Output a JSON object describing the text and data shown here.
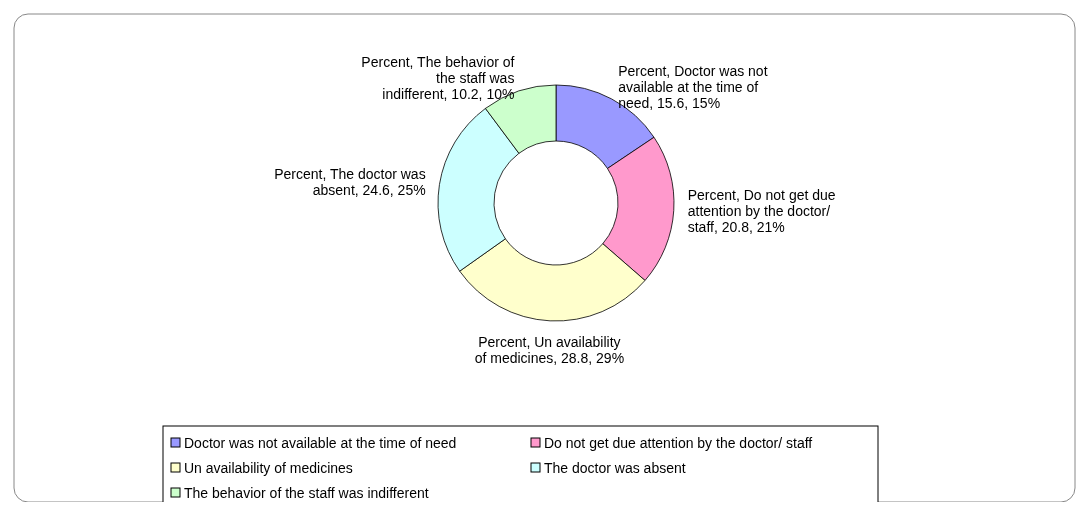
{
  "chart_data": {
    "type": "donut",
    "categories": [
      "Doctor was not available at the time of need",
      "Do not get due attention by the doctor/ staff",
      "Un availability of medicines",
      "The doctor was absent",
      "The behavior of the staff  was indifferent"
    ],
    "values": [
      15.6,
      20.8,
      28.8,
      24.6,
      10.2
    ],
    "colors": [
      "#9999ff",
      "#ff99cc",
      "#ffffcc",
      "#ccffff",
      "#ccffcc"
    ],
    "value_labels": [
      "Percent, Doctor was not available at the time of need, 15.6, 15%",
      "Percent, Do not get due attention by the doctor/ staff, 20.8, 21%",
      "Percent, Un availability of medicines, 28.8, 29%",
      "Percent, The doctor was absent, 24.6, 25%",
      "Percent, The behavior of the staff was indifferent, 10.2, 10%"
    ],
    "legend": "bottom"
  }
}
